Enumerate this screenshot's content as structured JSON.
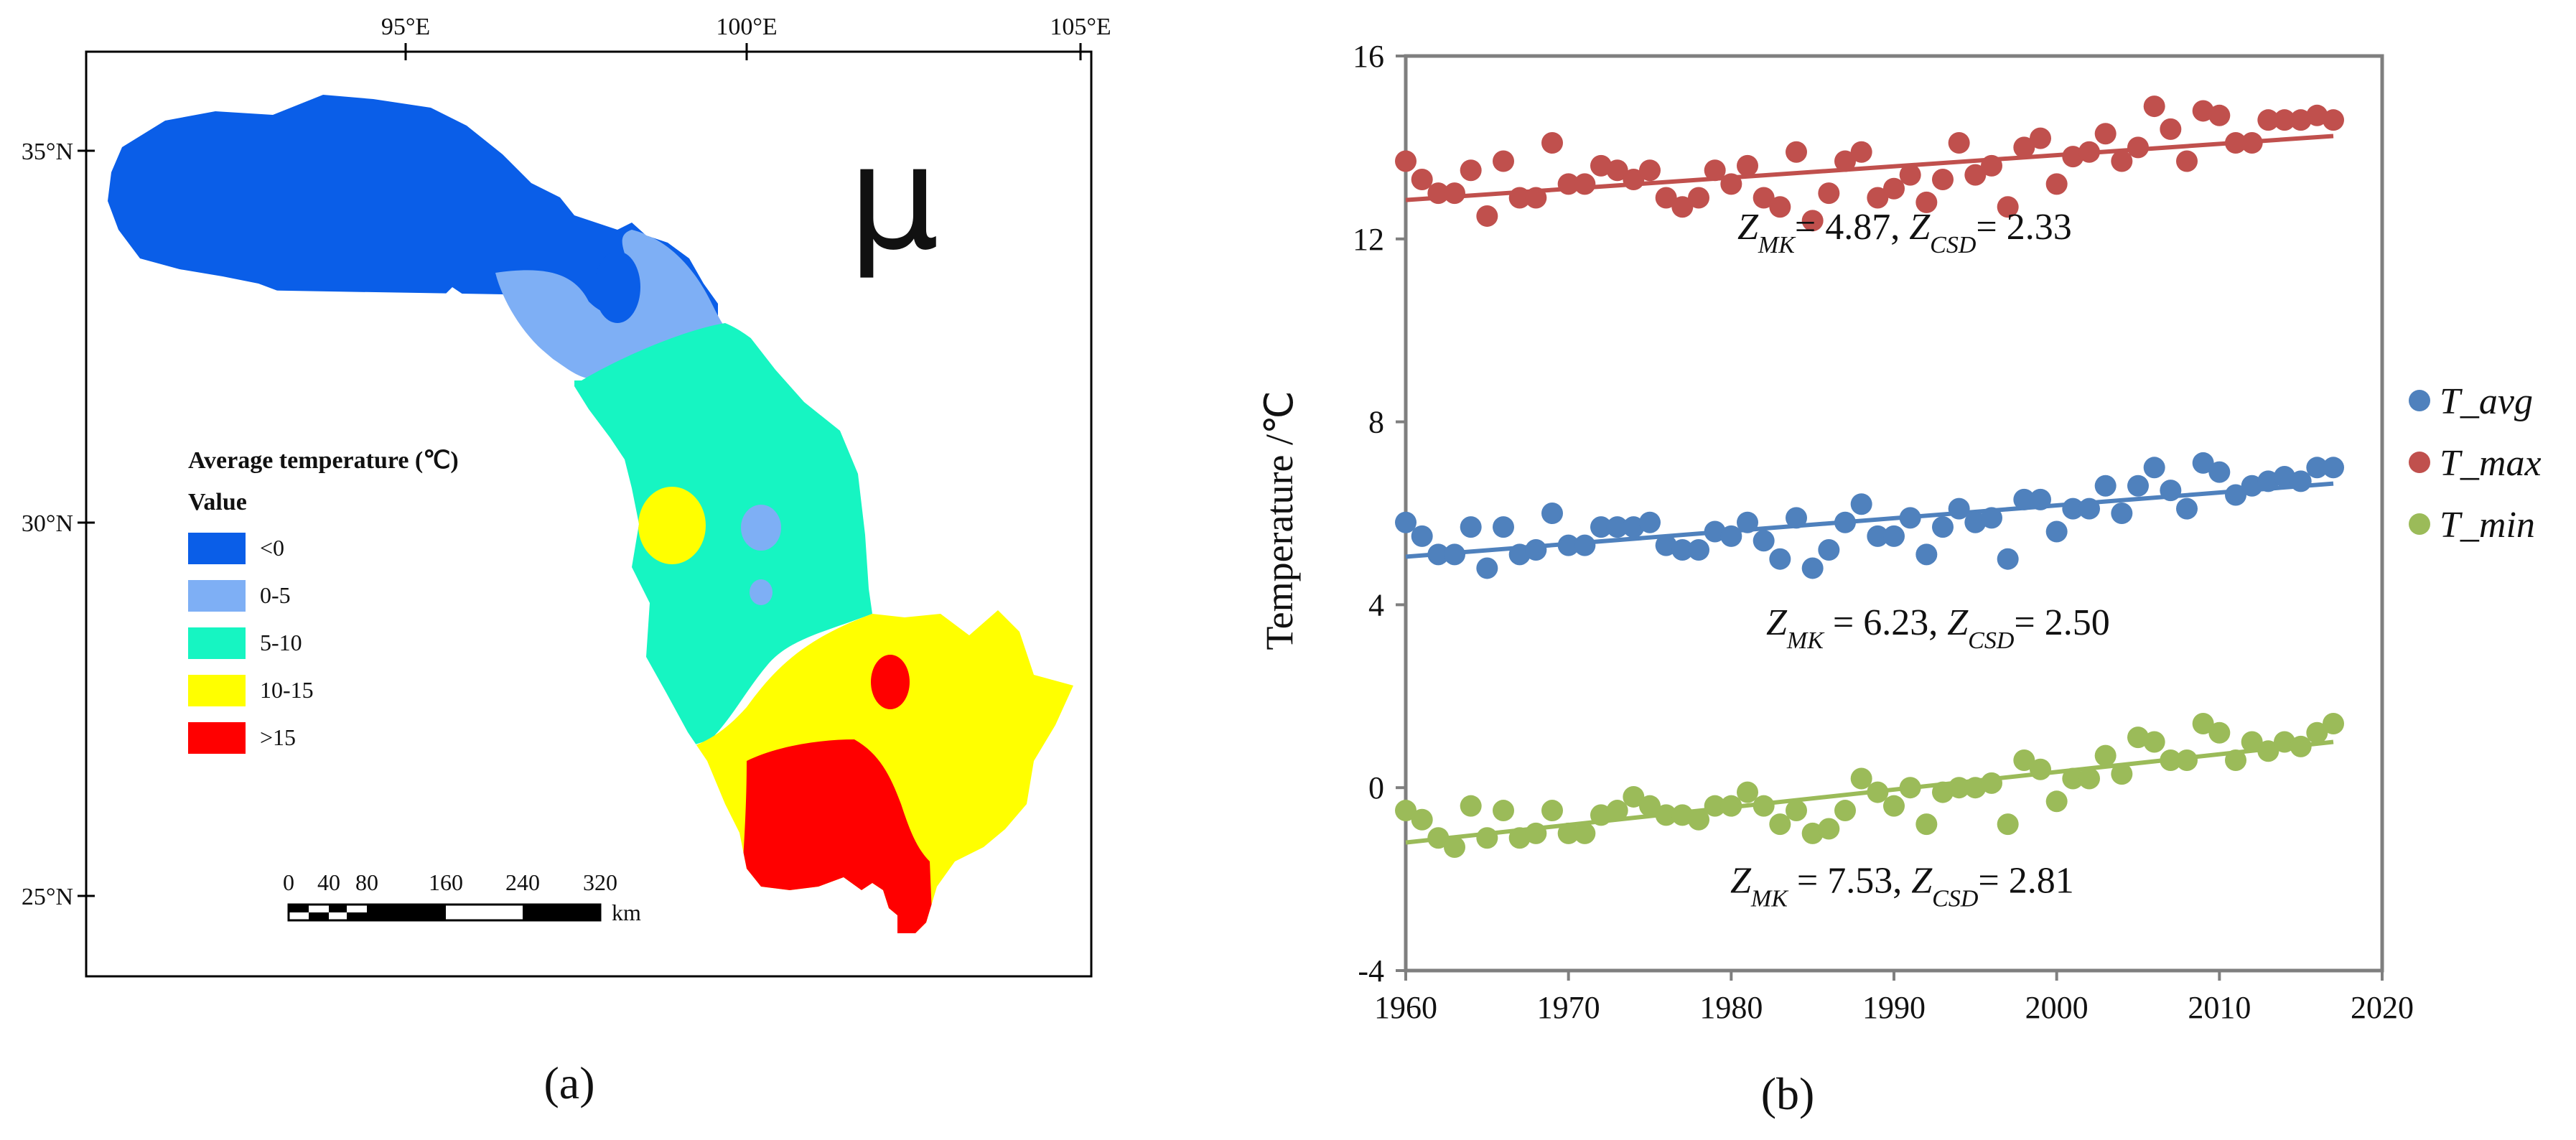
{
  "map": {
    "caption": "(a)",
    "symbol": "μ",
    "lon_labels": [
      "95°E",
      "100°E",
      "105°E"
    ],
    "lat_labels": [
      "35°N",
      "30°N",
      "25°N"
    ],
    "legend": {
      "title": "Average temperature (℃)",
      "subtitle": "Value",
      "classes": [
        {
          "label": "<0",
          "color": "#0a5ee8"
        },
        {
          "label": "0-5",
          "color": "#7eaff5"
        },
        {
          "label": "5-10",
          "color": "#16f5c2"
        },
        {
          "label": "10-15",
          "color": "#ffff00"
        },
        {
          "label": ">15",
          "color": "#ff0000"
        }
      ]
    },
    "scalebar": {
      "ticks": [
        "0",
        "40",
        "80",
        "160",
        "240",
        "320"
      ],
      "unit": "km"
    }
  },
  "chart_data": {
    "type": "scatter",
    "caption": "(b)",
    "ylabel": "Temperature /℃",
    "xlabel": "",
    "xlim": [
      1960,
      2020
    ],
    "ylim": [
      -4,
      16
    ],
    "xticks": [
      1960,
      1970,
      1980,
      1990,
      2000,
      2010,
      2020
    ],
    "yticks": [
      -4,
      0,
      4,
      8,
      12,
      16
    ],
    "x": [
      1960,
      1961,
      1962,
      1963,
      1964,
      1965,
      1966,
      1967,
      1968,
      1969,
      1970,
      1971,
      1972,
      1973,
      1974,
      1975,
      1976,
      1977,
      1978,
      1979,
      1980,
      1981,
      1982,
      1983,
      1984,
      1985,
      1986,
      1987,
      1988,
      1989,
      1990,
      1991,
      1992,
      1993,
      1994,
      1995,
      1996,
      1997,
      1998,
      1999,
      2000,
      2001,
      2002,
      2003,
      2004,
      2005,
      2006,
      2007,
      2008,
      2009,
      2010,
      2011,
      2012,
      2013,
      2014,
      2015,
      2016,
      2017
    ],
    "series": [
      {
        "name": "T_max",
        "label_main": "T",
        "label_sub": "_max",
        "color": "#c0504d",
        "values": [
          13.7,
          13.3,
          13.0,
          13.0,
          13.5,
          12.5,
          13.7,
          12.9,
          12.9,
          14.1,
          13.2,
          13.2,
          13.6,
          13.5,
          13.3,
          13.5,
          12.9,
          12.7,
          12.9,
          13.5,
          13.2,
          13.6,
          12.9,
          12.7,
          13.9,
          12.4,
          13.0,
          13.7,
          13.9,
          12.9,
          13.1,
          13.4,
          12.8,
          13.3,
          14.1,
          13.4,
          13.6,
          12.7,
          14.0,
          14.2,
          13.2,
          13.8,
          13.9,
          14.3,
          13.7,
          14.0,
          14.9,
          14.4,
          13.7,
          14.8,
          14.7,
          14.1,
          14.1,
          14.6,
          14.6,
          14.6,
          14.7,
          14.6
        ],
        "trend": [
          12.85,
          14.25
        ],
        "annotation": {
          "prefix": "Z",
          "sub1": "MK",
          "mid": "= 4.87, Z",
          "sub2": "CSD",
          "suffix": "= 2.33"
        }
      },
      {
        "name": "T_avg",
        "label_main": "T",
        "label_sub": "_avg",
        "color": "#4f81bd",
        "values": [
          5.8,
          5.5,
          5.1,
          5.1,
          5.7,
          4.8,
          5.7,
          5.1,
          5.2,
          6.0,
          5.3,
          5.3,
          5.7,
          5.7,
          5.7,
          5.8,
          5.3,
          5.2,
          5.2,
          5.6,
          5.5,
          5.8,
          5.4,
          5.0,
          5.9,
          4.8,
          5.2,
          5.8,
          6.2,
          5.5,
          5.5,
          5.9,
          5.1,
          5.7,
          6.1,
          5.8,
          5.9,
          5.0,
          6.3,
          6.3,
          5.6,
          6.1,
          6.1,
          6.6,
          6.0,
          6.6,
          7.0,
          6.5,
          6.1,
          7.1,
          6.9,
          6.4,
          6.6,
          6.7,
          6.8,
          6.7,
          7.0,
          7.0
        ],
        "trend": [
          5.05,
          6.65
        ],
        "annotation": {
          "prefix": "Z",
          "sub1": "MK",
          "mid": " = 6.23, Z",
          "sub2": "CSD",
          "suffix": "= 2.50"
        }
      },
      {
        "name": "T_min",
        "label_main": "T",
        "label_sub": "_min",
        "color": "#9bbb59",
        "values": [
          -0.5,
          -0.7,
          -1.1,
          -1.3,
          -0.4,
          -1.1,
          -0.5,
          -1.1,
          -1.0,
          -0.5,
          -1.0,
          -1.0,
          -0.6,
          -0.5,
          -0.2,
          -0.4,
          -0.6,
          -0.6,
          -0.7,
          -0.4,
          -0.4,
          -0.1,
          -0.4,
          -0.8,
          -0.5,
          -1.0,
          -0.9,
          -0.5,
          0.2,
          -0.1,
          -0.4,
          0.0,
          -0.8,
          -0.1,
          0.0,
          0.0,
          0.1,
          -0.8,
          0.6,
          0.4,
          -0.3,
          0.2,
          0.2,
          0.7,
          0.3,
          1.1,
          1.0,
          0.6,
          0.6,
          1.4,
          1.2,
          0.6,
          1.0,
          0.8,
          1.0,
          0.9,
          1.2,
          1.4
        ],
        "trend": [
          -1.2,
          1.0
        ],
        "annotation": {
          "prefix": "Z",
          "sub1": "MK",
          "mid": " = 7.53, Z",
          "sub2": "CSD",
          "suffix": "= 2.81"
        }
      }
    ],
    "legend_order": [
      "T_avg",
      "T_max",
      "T_min"
    ],
    "legend_position": "right"
  }
}
